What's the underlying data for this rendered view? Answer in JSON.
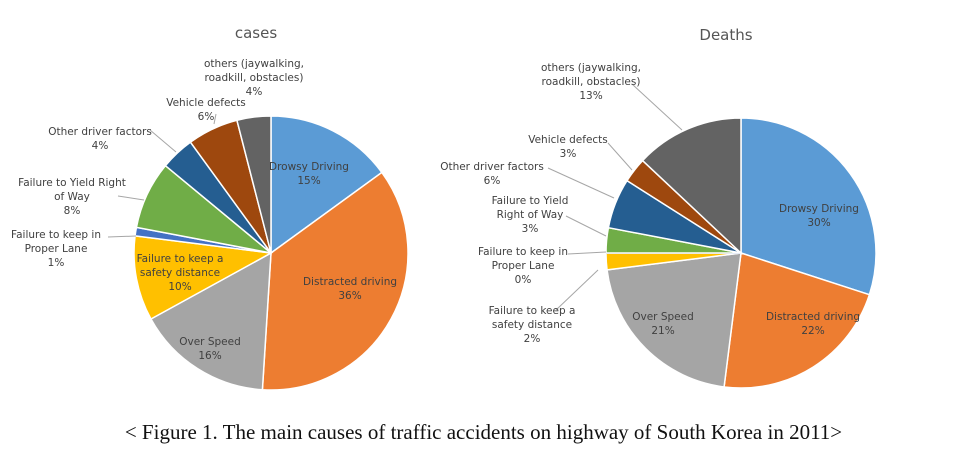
{
  "caption": "< Figure 1. The main causes of traffic accidents on highway of South Korea in 2011>",
  "chart_data": [
    {
      "type": "pie",
      "title": "cases",
      "slices": [
        {
          "label": "Drowsy Driving",
          "value": 15,
          "text": [
            "Drowsy Driving",
            "15%"
          ],
          "color": "#5B9BD5"
        },
        {
          "label": "Distracted driving",
          "value": 36,
          "text": [
            "Distracted driving",
            "36%"
          ],
          "color": "#ED7D31"
        },
        {
          "label": "Over Speed",
          "value": 16,
          "text": [
            "Over Speed",
            "16%"
          ],
          "color": "#A5A5A5"
        },
        {
          "label": "Failure to keep a safety distance",
          "value": 10,
          "text": [
            "Failure to keep a",
            "safety distance",
            "10%"
          ],
          "color": "#FFC000"
        },
        {
          "label": "Failure to keep in Proper Lane",
          "value": 1,
          "text": [
            "Failure to keep in",
            "Proper Lane",
            "1%"
          ],
          "color": "#4472C4"
        },
        {
          "label": "Failure to Yield Right of Way",
          "value": 8,
          "text": [
            "Failure to Yield Right",
            "of Way",
            "8%"
          ],
          "color": "#70AD47"
        },
        {
          "label": "Other driver factors",
          "value": 4,
          "text": [
            "Other driver factors",
            "4%"
          ],
          "color": "#255E91"
        },
        {
          "label": "Vehicle defects",
          "value": 6,
          "text": [
            "Vehicle defects",
            "6%"
          ],
          "color": "#9E480E"
        },
        {
          "label": "others (jaywalking, roadkill, obstacles)",
          "value": 4,
          "text": [
            "others (jaywalking,",
            "roadkill, obstacles)",
            "4%"
          ],
          "color": "#636363"
        }
      ]
    },
    {
      "type": "pie",
      "title": "Deaths",
      "slices": [
        {
          "label": "Drowsy Driving",
          "value": 30,
          "text": [
            "Drowsy Driving",
            "30%"
          ],
          "color": "#5B9BD5"
        },
        {
          "label": "Distracted driving",
          "value": 22,
          "text": [
            "Distracted driving",
            "22%"
          ],
          "color": "#ED7D31"
        },
        {
          "label": "Over Speed",
          "value": 21,
          "text": [
            "Over Speed",
            "21%"
          ],
          "color": "#A5A5A5"
        },
        {
          "label": "Failure to keep a safety distance",
          "value": 2,
          "text": [
            "Failure to keep a",
            "safety distance",
            "2%"
          ],
          "color": "#FFC000"
        },
        {
          "label": "Failure to keep in Proper Lane",
          "value": 0,
          "text": [
            "Failure to keep in",
            "Proper Lane",
            "0%"
          ],
          "color": "#4472C4"
        },
        {
          "label": "Failure to Yield Right of Way",
          "value": 3,
          "text": [
            "Failure to Yield",
            "Right of Way",
            "3%"
          ],
          "color": "#70AD47"
        },
        {
          "label": "Other driver factors",
          "value": 6,
          "text": [
            "Other driver factors",
            "6%"
          ],
          "color": "#255E91"
        },
        {
          "label": "Vehicle defects",
          "value": 3,
          "text": [
            "Vehicle defects",
            "3%"
          ],
          "color": "#9E480E"
        },
        {
          "label": "others (jaywalking, roadkill, obstacles)",
          "value": 13,
          "text": [
            "others (jaywalking,",
            "roadkill, obstacles)",
            "13%"
          ],
          "color": "#636363"
        }
      ]
    }
  ]
}
